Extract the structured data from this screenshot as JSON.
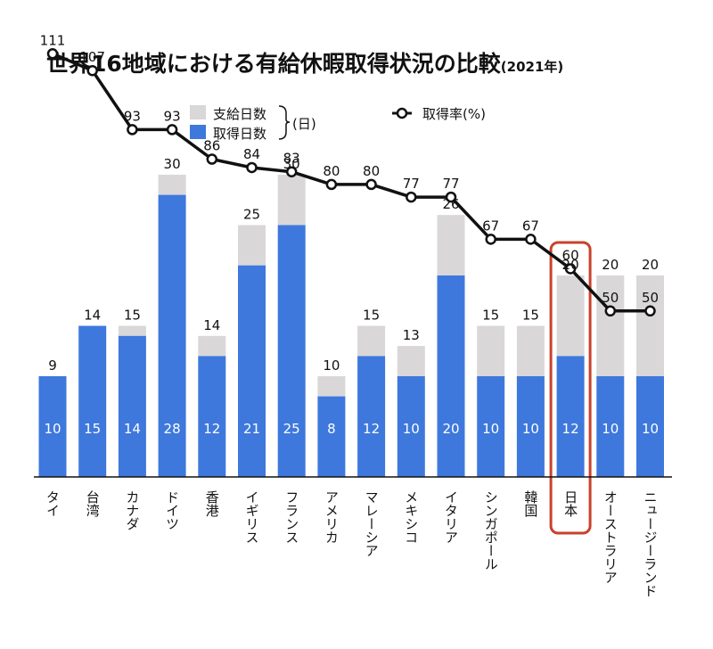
{
  "chart_data": {
    "type": "bar",
    "title": "世界16地域における有給休暇取得状況の比較",
    "subtitle": "(2021年)",
    "categories": [
      "タイ",
      "台湾",
      "カナダ",
      "ドイツ",
      "香港",
      "イギリス",
      "フランス",
      "アメリカ",
      "マレーシア",
      "メキシコ",
      "イタリア",
      "シンガポール",
      "韓国",
      "日本",
      "オーストラリア",
      "ニュージーランド"
    ],
    "series": [
      {
        "name": "支給日数",
        "type": "bar",
        "values": [
          9,
          14,
          15,
          30,
          14,
          25,
          30,
          10,
          15,
          13,
          26,
          15,
          15,
          20,
          20,
          20
        ]
      },
      {
        "name": "取得日数",
        "type": "bar",
        "values": [
          10,
          15,
          14,
          28,
          12,
          21,
          25,
          8,
          12,
          10,
          20,
          10,
          10,
          12,
          10,
          10
        ]
      },
      {
        "name": "取得率(%)",
        "type": "line",
        "values": [
          111,
          107,
          93,
          93,
          86,
          84,
          83,
          80,
          80,
          77,
          77,
          67,
          67,
          60,
          50,
          50
        ]
      }
    ],
    "legend": {
      "granted_label": "支給日数",
      "taken_label": "取得日数",
      "unit_label": "(日)",
      "rate_label": "取得率(%)",
      "placement": "top-center"
    },
    "highlight_category": "日本",
    "colors": {
      "granted": "#d9d7d8",
      "taken": "#3e78dc",
      "line": "#111111",
      "highlight": "#c9412b"
    }
  }
}
